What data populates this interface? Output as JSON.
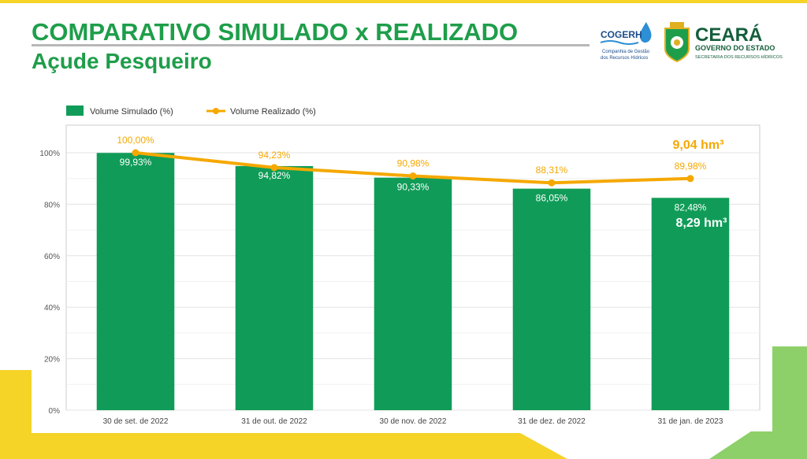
{
  "header": {
    "title": "COMPARATIVO SIMULADO x REALIZADO",
    "subtitle": "Açude Pesqueiro"
  },
  "logos": {
    "cogerh": {
      "name": "COGERH",
      "tagline_1": "Companhia de Gestão",
      "tagline_2": "dos Recursos Hídricos"
    },
    "ceara": {
      "name": "CEARÁ",
      "line_1": "GOVERNO DO ESTADO",
      "line_2": "SECRETARIA DOS RECURSOS HÍDRICOS"
    }
  },
  "colors": {
    "title_green": "#1e9e4a",
    "bar_green": "#109c58",
    "line_orange": "#f5a800",
    "accent_yellow": "#f5d327",
    "accent_light_green": "#8dd069"
  },
  "chart_data": {
    "type": "bar",
    "categories": [
      "30 de set. de 2022",
      "31 de out. de 2022",
      "30 de nov. de 2022",
      "31 de dez. de 2022",
      "31 de jan. de 2023"
    ],
    "series": [
      {
        "name": "Volume Simulado (%)",
        "type": "bar",
        "values": [
          99.93,
          94.82,
          90.33,
          86.05,
          82.48
        ],
        "labels": [
          "99,93%",
          "94,82%",
          "90,33%",
          "86,05%",
          "82,48%"
        ]
      },
      {
        "name": "Volume Realizado (%)",
        "type": "line",
        "values": [
          100.0,
          94.23,
          90.98,
          88.31,
          89.98
        ],
        "labels": [
          "100,00%",
          "94,23%",
          "90,98%",
          "88,31%",
          "89,98%"
        ]
      }
    ],
    "yticks": [
      0,
      20,
      40,
      60,
      80,
      100
    ],
    "ytick_labels": [
      "0%",
      "20%",
      "40%",
      "60%",
      "80%",
      "100%"
    ],
    "ylim": [
      0,
      100
    ],
    "legend_position": "top-left",
    "grid": true,
    "annotations": {
      "realizado_volume": "9,04 hm³",
      "simulado_volume": "8,29 hm³"
    }
  }
}
